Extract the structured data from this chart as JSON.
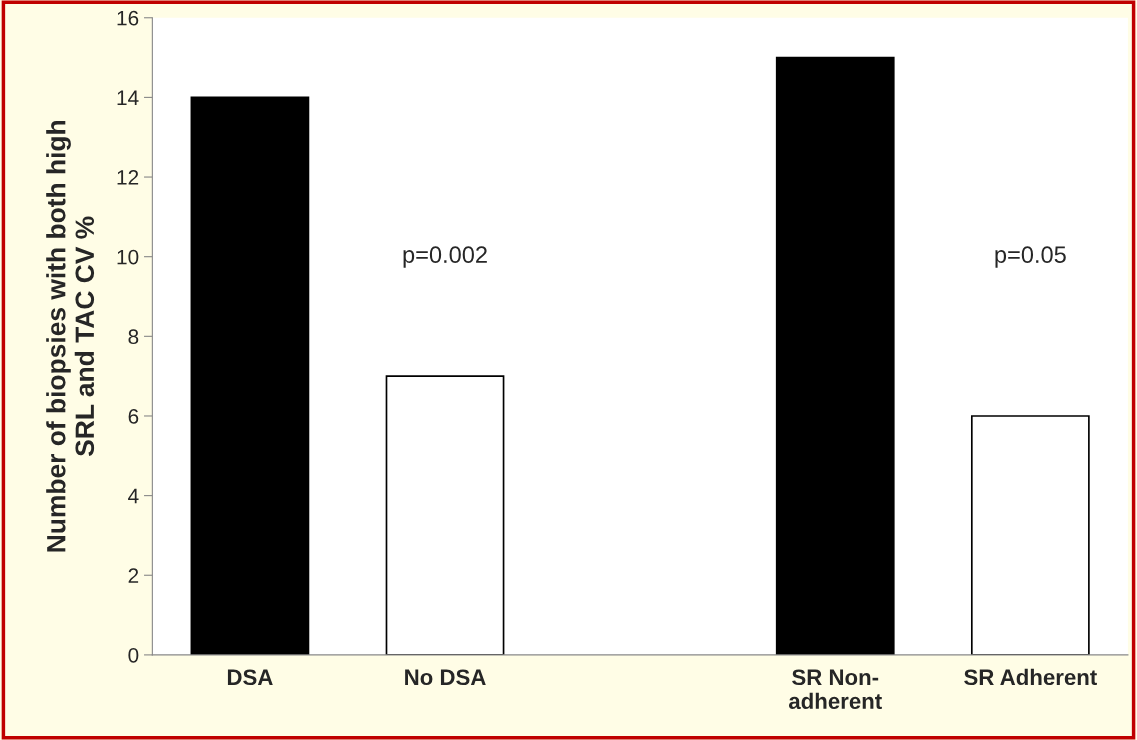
{
  "chart_data": {
    "type": "bar",
    "categories": [
      "DSA",
      "No DSA",
      null,
      "SR Non-\nadherent",
      "SR Adherent"
    ],
    "values": [
      14,
      7,
      null,
      15,
      6
    ],
    "colors": [
      "#000000",
      "#ffffff",
      "#ffffff",
      "#000000",
      "#ffffff"
    ],
    "ylabel": "Number of biopsies with both high\nSRL and TAC CV %",
    "ylim": [
      0,
      16
    ],
    "yticks": [
      0,
      2,
      4,
      6,
      8,
      10,
      12,
      14,
      16
    ],
    "annotations": [
      "p=0.002",
      "p=0.05"
    ],
    "grid": false,
    "legend": false
  }
}
